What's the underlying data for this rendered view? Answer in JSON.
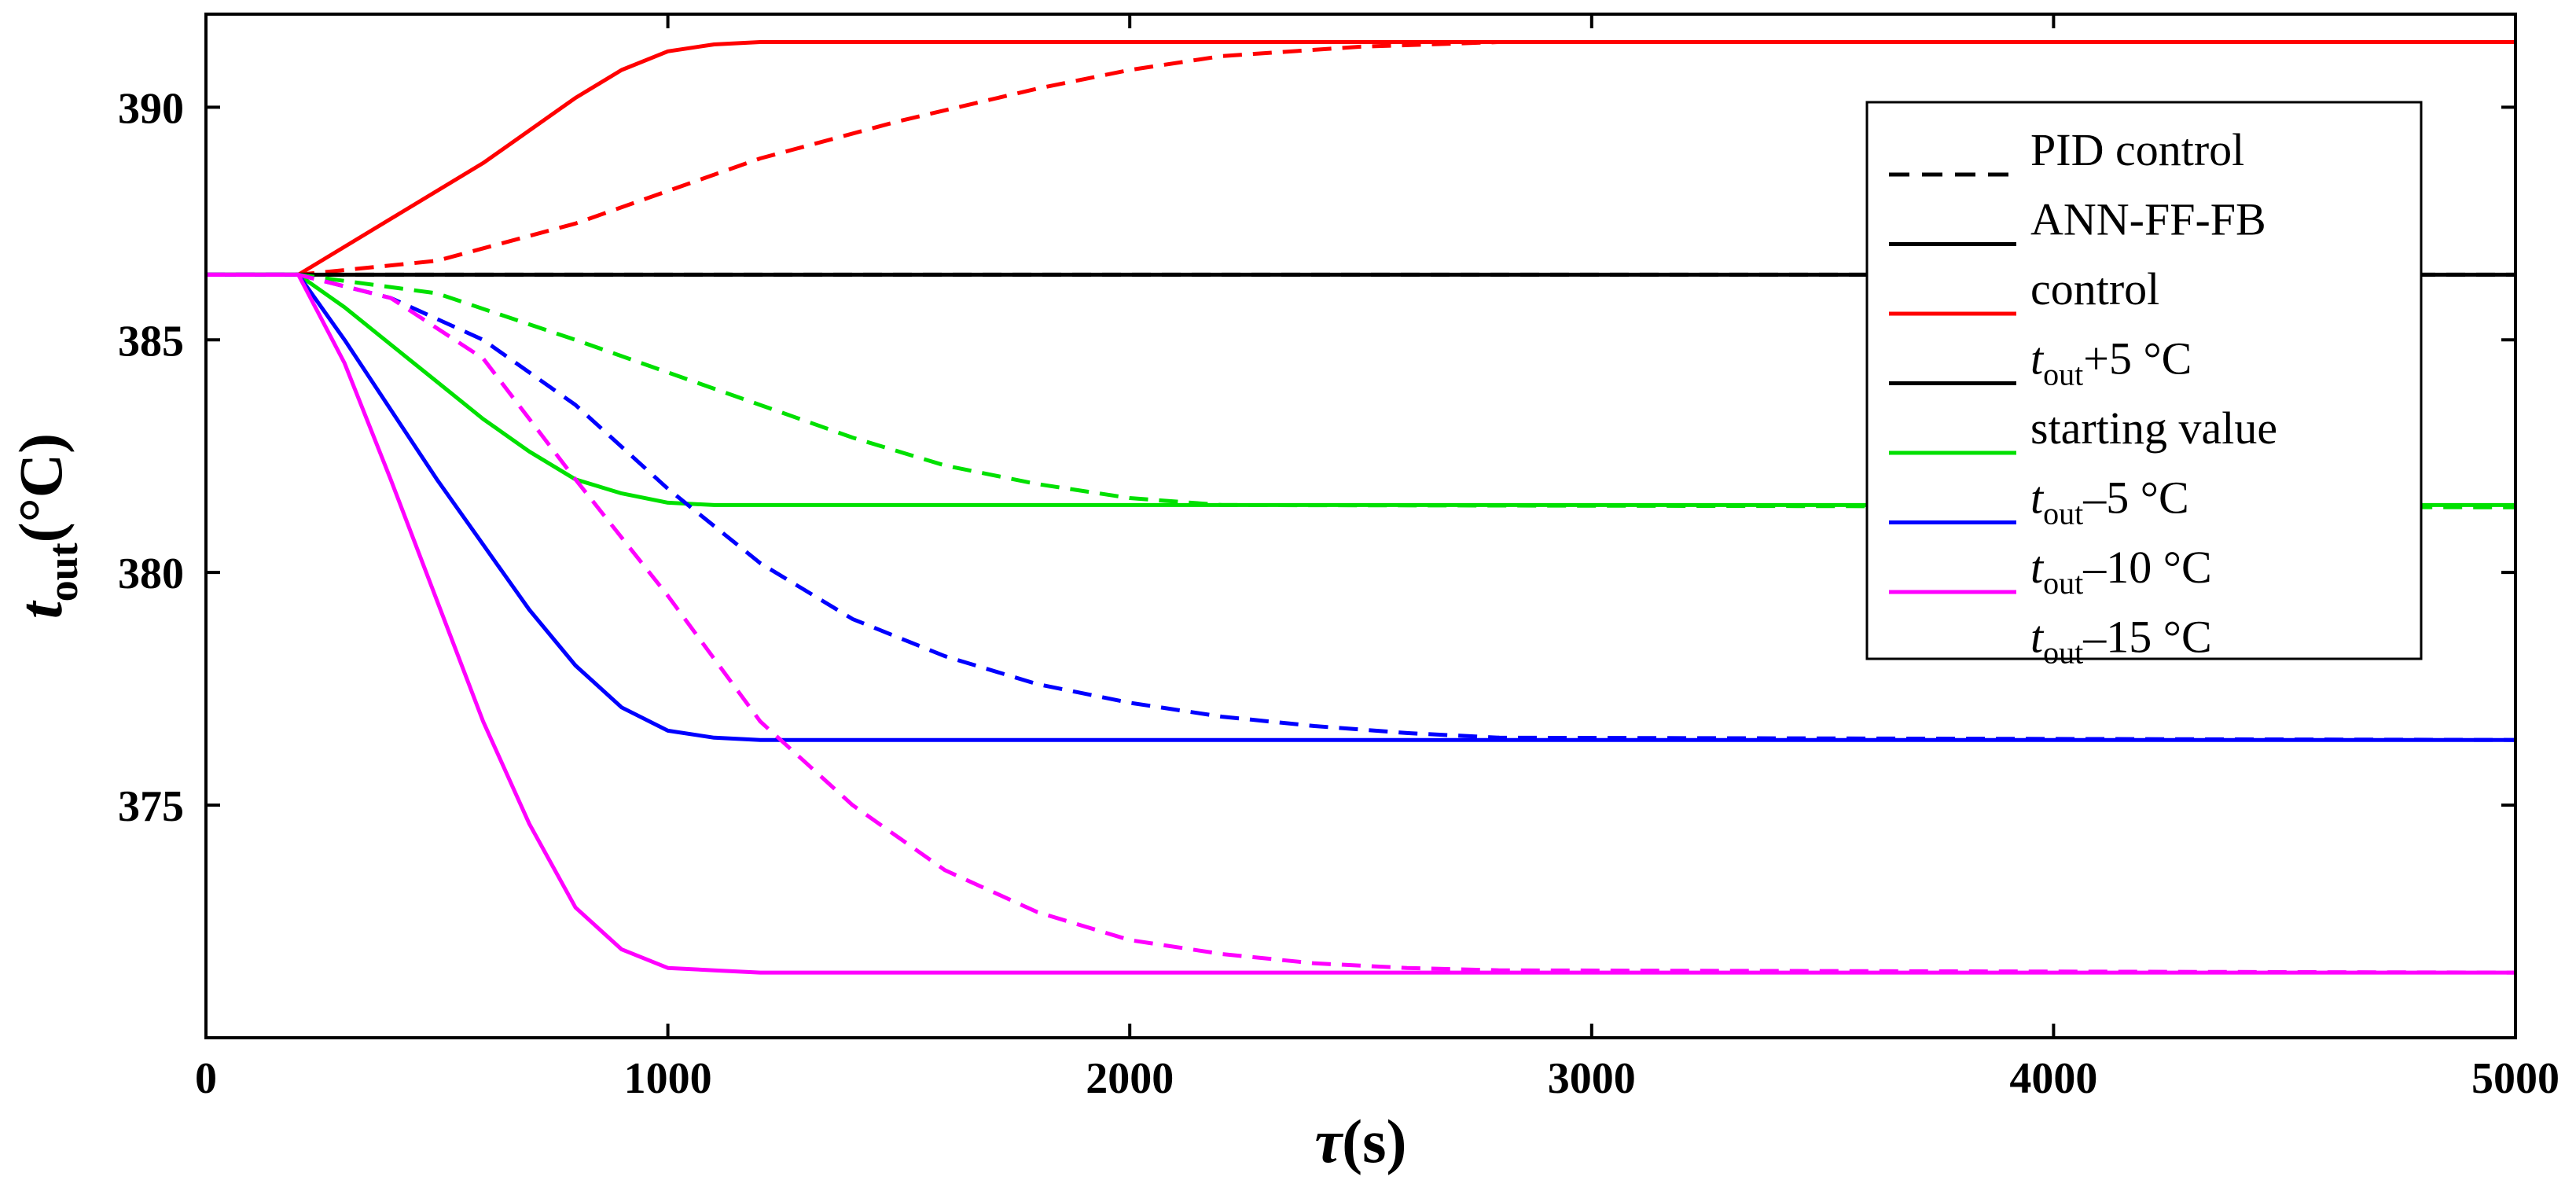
{
  "chart_data": {
    "type": "line",
    "xlabel": {
      "main": "τ",
      "unit": "(s)"
    },
    "ylabel": {
      "main": "t",
      "sub": "out",
      "unit": "(°C)"
    },
    "xlim": [
      0,
      5000
    ],
    "ylim": [
      370,
      392
    ],
    "x_ticks": [
      0,
      1000,
      2000,
      3000,
      4000,
      5000
    ],
    "y_ticks": [
      375,
      380,
      385,
      390
    ],
    "grid": false,
    "legend_position": "top-right",
    "legend": [
      {
        "text": "PID control",
        "style": "dashed",
        "color": "#000000"
      },
      {
        "text": "ANN-FF-FB",
        "style": "solid",
        "color": "#000000"
      },
      {
        "text": "control",
        "style": "solid",
        "color": "#ff0000"
      },
      {
        "text": "+5 °C",
        "prefix": "t",
        "prefix_sub": "out",
        "style": "solid",
        "color": "#000000"
      },
      {
        "text": "starting value",
        "style": "solid",
        "color": "#00e000"
      },
      {
        "text": "–5 °C",
        "prefix": "t",
        "prefix_sub": "out",
        "style": "solid",
        "color": "#0000ff"
      },
      {
        "text": "–10 °C",
        "prefix": "t",
        "prefix_sub": "out",
        "style": "solid",
        "color": "#ff00ff"
      },
      {
        "text": "–15 °C",
        "prefix": "t",
        "prefix_sub": "out",
        "style": "none",
        "color": "#000000"
      }
    ],
    "series": [
      {
        "color": "#ff0000",
        "style": "solid",
        "x": [
          0,
          200,
          400,
          600,
          800,
          900,
          1000,
          1100,
          1200,
          5000
        ],
        "y": [
          386.4,
          386.4,
          387.6,
          388.8,
          390.2,
          390.8,
          391.2,
          391.35,
          391.4,
          391.4
        ]
      },
      {
        "color": "#ff0000",
        "style": "dashed",
        "x": [
          0,
          200,
          500,
          800,
          1000,
          1200,
          1500,
          1800,
          2000,
          2200,
          2500,
          2800,
          5000
        ],
        "y": [
          386.4,
          386.4,
          386.7,
          387.5,
          388.2,
          388.9,
          389.7,
          390.4,
          390.8,
          391.1,
          391.3,
          391.4,
          391.4
        ]
      },
      {
        "color": "#000000",
        "style": "solid",
        "x": [
          0,
          5000
        ],
        "y": [
          386.4,
          386.4
        ]
      },
      {
        "color": "#000000",
        "style": "dashed",
        "x": [
          0,
          5000
        ],
        "y": [
          386.4,
          386.4
        ]
      },
      {
        "color": "#00e000",
        "style": "solid",
        "x": [
          0,
          200,
          300,
          400,
          500,
          600,
          700,
          800,
          900,
          1000,
          1100,
          1200,
          5000
        ],
        "y": [
          386.4,
          386.4,
          385.7,
          384.9,
          384.1,
          383.3,
          382.6,
          382.0,
          381.7,
          381.5,
          381.45,
          381.45,
          381.45
        ]
      },
      {
        "color": "#00e000",
        "style": "dashed",
        "x": [
          0,
          200,
          500,
          800,
          1000,
          1200,
          1400,
          1600,
          1800,
          2000,
          2200,
          5000
        ],
        "y": [
          386.4,
          386.4,
          386.0,
          385.0,
          384.3,
          383.6,
          382.9,
          382.3,
          381.9,
          381.6,
          381.45,
          381.4
        ]
      },
      {
        "color": "#0000ff",
        "style": "solid",
        "x": [
          0,
          200,
          300,
          400,
          500,
          600,
          700,
          800,
          900,
          1000,
          1100,
          1200,
          5000
        ],
        "y": [
          386.4,
          386.4,
          385.0,
          383.5,
          382.0,
          380.6,
          379.2,
          378.0,
          377.1,
          376.6,
          376.45,
          376.4,
          376.4
        ]
      },
      {
        "color": "#0000ff",
        "style": "dashed",
        "x": [
          0,
          200,
          400,
          600,
          800,
          1000,
          1200,
          1400,
          1600,
          1800,
          2000,
          2200,
          2400,
          2600,
          2800,
          5000
        ],
        "y": [
          386.4,
          386.4,
          385.9,
          385.0,
          383.6,
          381.8,
          380.2,
          379.0,
          378.2,
          377.6,
          377.2,
          376.9,
          376.7,
          376.55,
          376.45,
          376.4
        ]
      },
      {
        "color": "#ff00ff",
        "style": "solid",
        "x": [
          0,
          200,
          300,
          400,
          500,
          600,
          700,
          800,
          900,
          1000,
          1100,
          1200,
          1400,
          5000
        ],
        "y": [
          386.4,
          386.4,
          384.5,
          382.0,
          379.4,
          376.8,
          374.6,
          372.8,
          371.9,
          371.5,
          371.45,
          371.4,
          371.4,
          371.4
        ]
      },
      {
        "color": "#ff00ff",
        "style": "dashed",
        "x": [
          0,
          200,
          400,
          600,
          800,
          1000,
          1200,
          1400,
          1600,
          1800,
          2000,
          2200,
          2400,
          2600,
          2800,
          5000
        ],
        "y": [
          386.4,
          386.4,
          385.9,
          384.6,
          382.0,
          379.5,
          376.8,
          375.0,
          373.6,
          372.7,
          372.1,
          371.8,
          371.6,
          371.5,
          371.45,
          371.4
        ]
      }
    ]
  }
}
